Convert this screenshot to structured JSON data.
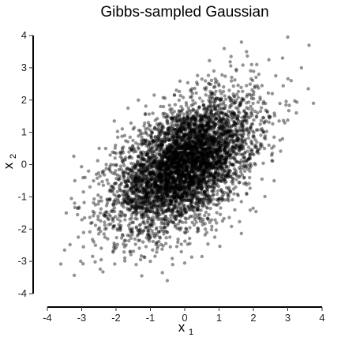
{
  "chart_data": {
    "type": "scatter",
    "title": "Gibbs-sampled Gaussian",
    "xlabel": {
      "main": "x",
      "sub": "1"
    },
    "ylabel": {
      "main": "x",
      "sub": "2"
    },
    "xlim": [
      -4,
      4
    ],
    "ylim": [
      -4,
      4
    ],
    "xticks": [
      -4,
      -3,
      -2,
      -1,
      0,
      1,
      2,
      3,
      4
    ],
    "yticks": [
      -4,
      -3,
      -2,
      -1,
      0,
      1,
      2,
      3,
      4
    ],
    "grid": false,
    "legend": "none",
    "point_color": "#000000",
    "point_opacity": 0.42,
    "points": [
      [
        -3.5,
        -2.65
      ],
      [
        -3.2,
        -0.5
      ],
      [
        -3.1,
        -2.25
      ],
      [
        -2.95,
        -2.55
      ],
      [
        -2.9,
        -0.4
      ],
      [
        -2.8,
        -0.2
      ],
      [
        -2.6,
        -1.25
      ],
      [
        -2.6,
        -2.5
      ],
      [
        -2.5,
        -0.6
      ],
      [
        -2.45,
        -1.75
      ],
      [
        -2.3,
        0.5
      ],
      [
        -2.25,
        -1.1
      ],
      [
        -2.2,
        -1.55
      ],
      [
        -2.1,
        -0.85
      ],
      [
        -2.05,
        -2.5
      ],
      [
        -2.0,
        0.35
      ],
      [
        -1.95,
        -1.05
      ],
      [
        -1.9,
        -1.55
      ],
      [
        -1.85,
        -0.15
      ],
      [
        -1.8,
        -2.2
      ],
      [
        -1.75,
        0.9
      ],
      [
        -1.7,
        -0.6
      ],
      [
        -1.7,
        -1.0
      ],
      [
        -1.65,
        -1.4
      ],
      [
        -1.6,
        -0.15
      ],
      [
        -1.55,
        0.45
      ],
      [
        -1.5,
        -0.85
      ],
      [
        -1.5,
        -1.8
      ],
      [
        -1.45,
        -0.35
      ],
      [
        -1.4,
        -0.95
      ],
      [
        -1.35,
        0.25
      ],
      [
        -1.3,
        -1.3
      ],
      [
        -1.3,
        -0.55
      ],
      [
        -1.25,
        0.85
      ],
      [
        -1.2,
        -1.65
      ],
      [
        -1.15,
        -0.2
      ],
      [
        -1.1,
        0.3
      ],
      [
        -1.1,
        -0.95
      ],
      [
        -1.05,
        -2.2
      ],
      [
        -1.0,
        -0.5
      ],
      [
        -1.0,
        1.2
      ],
      [
        -0.95,
        -0.1
      ],
      [
        -0.9,
        -1.25
      ],
      [
        -0.9,
        0.55
      ],
      [
        -0.85,
        -0.7
      ],
      [
        -0.8,
        -2.6
      ],
      [
        -0.8,
        0.0
      ],
      [
        -0.75,
        -1.55
      ],
      [
        -0.7,
        0.95
      ],
      [
        -0.7,
        -0.35
      ],
      [
        -0.65,
        -0.95
      ],
      [
        -0.6,
        0.25
      ],
      [
        -0.6,
        -1.95
      ],
      [
        -0.55,
        -0.6
      ],
      [
        -0.5,
        1.35
      ],
      [
        -0.5,
        -0.1
      ],
      [
        -0.45,
        -1.35
      ],
      [
        -0.4,
        0.6
      ],
      [
        -0.4,
        -0.85
      ],
      [
        -0.35,
        -3.1
      ],
      [
        -0.3,
        -0.3
      ],
      [
        -0.25,
        1.0
      ],
      [
        -0.25,
        -1.7
      ],
      [
        -0.2,
        0.2
      ],
      [
        -0.2,
        -0.7
      ],
      [
        -0.15,
        1.65
      ],
      [
        -0.1,
        -1.1
      ],
      [
        -0.1,
        0.55
      ],
      [
        -0.05,
        -0.2
      ],
      [
        0.0,
        -2.1
      ],
      [
        0.0,
        0.85
      ],
      [
        0.05,
        -0.55
      ],
      [
        0.1,
        1.25
      ],
      [
        0.1,
        -1.3
      ],
      [
        0.15,
        0.15
      ],
      [
        0.2,
        -0.85
      ],
      [
        0.2,
        2.1
      ],
      [
        0.25,
        0.55
      ],
      [
        0.3,
        -1.7
      ],
      [
        0.3,
        -0.2
      ],
      [
        0.35,
        1.6
      ],
      [
        0.4,
        0.9
      ],
      [
        0.4,
        -0.6
      ],
      [
        0.45,
        0.25
      ],
      [
        0.5,
        -1.2
      ],
      [
        0.5,
        2.65
      ],
      [
        0.55,
        0.6
      ],
      [
        0.6,
        -0.25
      ],
      [
        0.65,
        1.3
      ],
      [
        0.7,
        -1.55
      ],
      [
        0.7,
        0.1
      ],
      [
        0.75,
        2.05
      ],
      [
        0.8,
        0.8
      ],
      [
        0.85,
        -0.75
      ],
      [
        0.9,
        1.55
      ],
      [
        0.95,
        0.3
      ],
      [
        1.0,
        -1.2
      ],
      [
        1.0,
        2.45
      ],
      [
        1.05,
        0.95
      ],
      [
        1.1,
        -0.3
      ],
      [
        1.15,
        1.75
      ],
      [
        1.2,
        0.55
      ],
      [
        1.25,
        -0.95
      ],
      [
        1.3,
        2.3
      ],
      [
        1.35,
        1.05
      ],
      [
        1.4,
        0.0
      ],
      [
        1.45,
        1.55
      ],
      [
        1.5,
        2.95
      ],
      [
        1.55,
        0.75
      ],
      [
        1.6,
        -0.55
      ],
      [
        1.65,
        1.95
      ],
      [
        1.7,
        1.2
      ],
      [
        1.75,
        0.35
      ],
      [
        1.8,
        2.45
      ],
      [
        1.85,
        1.45
      ],
      [
        1.9,
        -0.1
      ],
      [
        1.95,
        2.05
      ],
      [
        2.0,
        0.9
      ],
      [
        2.05,
        1.65
      ],
      [
        2.1,
        3.1
      ],
      [
        2.15,
        0.35
      ],
      [
        2.2,
        1.25
      ],
      [
        2.25,
        2.45
      ],
      [
        2.3,
        1.95
      ],
      [
        2.35,
        0.8
      ],
      [
        2.45,
        1.5
      ],
      [
        2.55,
        2.2
      ],
      [
        2.65,
        2.75
      ],
      [
        2.75,
        1.35
      ],
      [
        2.85,
        3.3
      ],
      [
        2.95,
        1.85
      ],
      [
        3.0,
        3.95
      ],
      [
        3.1,
        2.6
      ],
      [
        3.25,
        1.6
      ],
      [
        3.4,
        3.0
      ],
      [
        3.6,
        2.35
      ],
      [
        3.75,
        1.9
      ],
      [
        -2.95,
        -0.85
      ],
      [
        -2.7,
        -1.8
      ],
      [
        -2.35,
        -2.15
      ],
      [
        -2.15,
        0.0
      ],
      [
        -1.95,
        0.85
      ],
      [
        -1.75,
        -2.55
      ],
      [
        -1.5,
        1.1
      ],
      [
        -1.35,
        -2.35
      ],
      [
        -1.15,
        1.55
      ],
      [
        -0.95,
        -2.05
      ],
      [
        -0.7,
        1.8
      ],
      [
        -0.55,
        -2.45
      ],
      [
        -0.3,
        2.15
      ],
      [
        -0.1,
        -2.7
      ],
      [
        0.15,
        -2.45
      ],
      [
        0.35,
        2.55
      ],
      [
        0.6,
        -2.0
      ],
      [
        0.85,
        2.9
      ],
      [
        1.1,
        -1.75
      ],
      [
        1.35,
        3.35
      ],
      [
        1.65,
        -1.15
      ],
      [
        1.95,
        3.1
      ],
      [
        2.25,
        -0.45
      ],
      [
        2.55,
        0.35
      ],
      [
        2.85,
        0.8
      ],
      [
        -1.25,
        -3.45
      ],
      [
        -0.65,
        -3.35
      ],
      [
        0.0,
        -3.05
      ],
      [
        -1.0,
        -3.0
      ],
      [
        0.5,
        -2.85
      ],
      [
        1.15,
        3.6
      ],
      [
        1.8,
        3.5
      ],
      [
        2.45,
        3.25
      ],
      [
        -3.45,
        -1.5
      ],
      [
        -3.3,
        -1.05
      ],
      [
        -2.05,
        1.35
      ],
      [
        -1.65,
        1.75
      ],
      [
        -1.35,
        2.0
      ]
    ]
  }
}
